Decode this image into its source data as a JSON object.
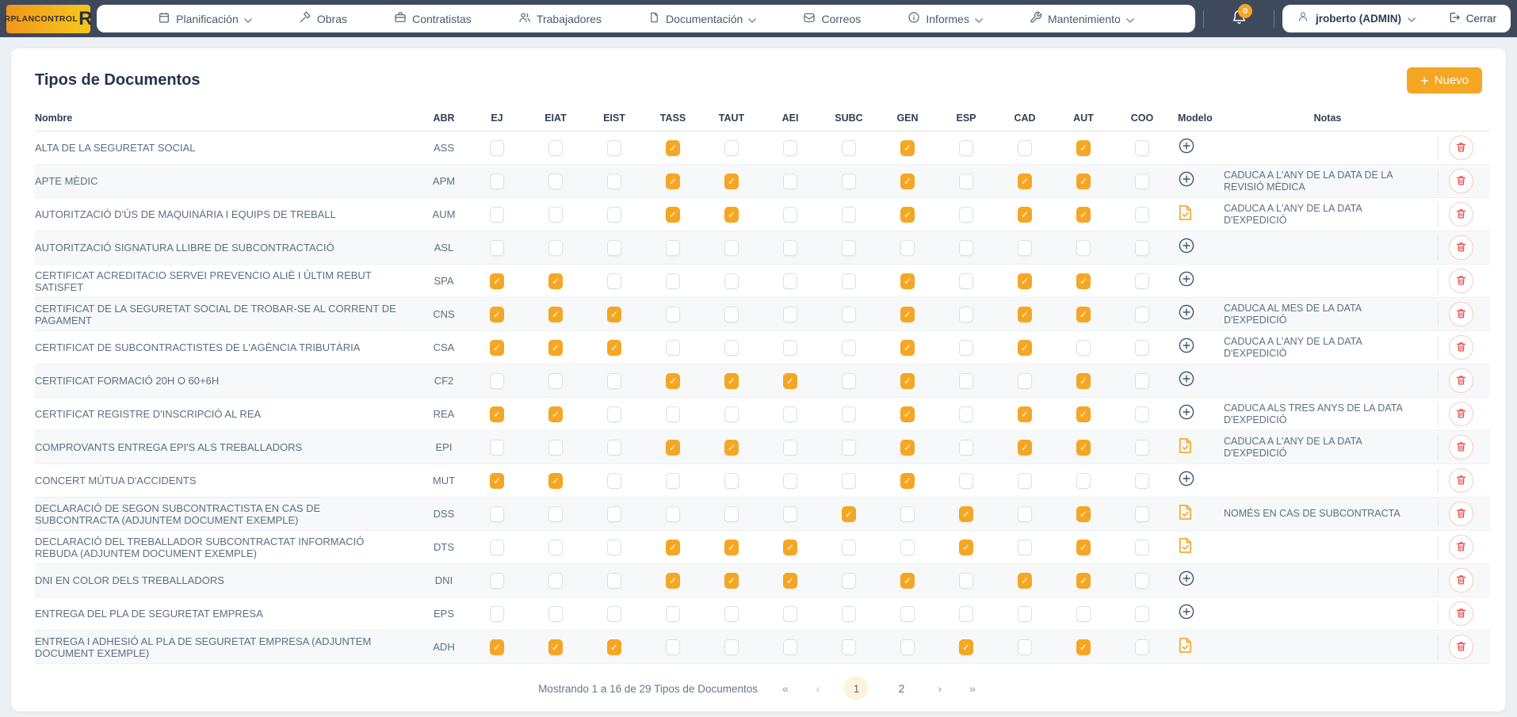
{
  "brand": {
    "logo_text": "RPLANCONTROL",
    "logo_mark": "R"
  },
  "nav": {
    "items": [
      {
        "label": "Planificación",
        "icon": "calendar-icon",
        "has_dropdown": true
      },
      {
        "label": "Obras",
        "icon": "gavel-icon",
        "has_dropdown": false
      },
      {
        "label": "Contratistas",
        "icon": "briefcase-icon",
        "has_dropdown": false
      },
      {
        "label": "Trabajadores",
        "icon": "people-icon",
        "has_dropdown": false
      },
      {
        "label": "Documentación",
        "icon": "document-icon",
        "has_dropdown": true
      },
      {
        "label": "Correos",
        "icon": "mail-icon",
        "has_dropdown": false
      },
      {
        "label": "Informes",
        "icon": "info-icon",
        "has_dropdown": true
      },
      {
        "label": "Mantenimiento",
        "icon": "wrench-icon",
        "has_dropdown": true
      }
    ]
  },
  "topbar": {
    "notifications_count": "0",
    "user_label": "jroberto (ADMIN)",
    "logout_label": "Cerrar"
  },
  "page": {
    "title": "Tipos de Documentos",
    "new_button_label": "Nuevo"
  },
  "table": {
    "columns": [
      "Nombre",
      "ABR",
      "EJ",
      "EIAT",
      "EIST",
      "TASS",
      "TAUT",
      "AEI",
      "SUBC",
      "GEN",
      "ESP",
      "CAD",
      "AUT",
      "COO",
      "Modelo",
      "Notas"
    ],
    "checkbox_columns": [
      "EJ",
      "EIAT",
      "EIST",
      "TASS",
      "TAUT",
      "AEI",
      "SUBC",
      "GEN",
      "ESP",
      "CAD",
      "AUT",
      "COO"
    ],
    "rows": [
      {
        "nombre": "ALTA DE LA SEGURETAT SOCIAL",
        "abr": "ASS",
        "checks": [
          0,
          0,
          0,
          1,
          0,
          0,
          0,
          1,
          0,
          0,
          1,
          0
        ],
        "modelo": "add",
        "notas": ""
      },
      {
        "nombre": "APTE MÈDIC",
        "abr": "APM",
        "checks": [
          0,
          0,
          0,
          1,
          1,
          0,
          0,
          1,
          0,
          1,
          1,
          0
        ],
        "modelo": "add",
        "notas": "CADUCA A L'ANY DE LA DATA DE LA REVISIÓ MÈDICA"
      },
      {
        "nombre": "AUTORITZACIÓ D'ÚS DE MAQUINÀRIA I EQUIPS DE TREBALL",
        "abr": "AUM",
        "checks": [
          0,
          0,
          0,
          1,
          1,
          0,
          0,
          1,
          0,
          1,
          1,
          0
        ],
        "modelo": "doc",
        "notas": "CADUCA A L'ANY DE LA DATA D'EXPEDICIÓ"
      },
      {
        "nombre": "AUTORITZACIÓ SIGNATURA LLIBRE DE SUBCONTRACTACIÓ",
        "abr": "ASL",
        "checks": [
          0,
          0,
          0,
          0,
          0,
          0,
          0,
          0,
          0,
          0,
          0,
          0
        ],
        "modelo": "add",
        "notas": ""
      },
      {
        "nombre": "CERTIFICAT ACREDITACIO SERVEI PREVENCIO ALIÈ I ÚLTIM REBUT SATISFET",
        "abr": "SPA",
        "checks": [
          1,
          1,
          0,
          0,
          0,
          0,
          0,
          1,
          0,
          1,
          1,
          0
        ],
        "modelo": "add",
        "notas": ""
      },
      {
        "nombre": "CERTIFICAT DE LA SEGURETAT SOCIAL DE TROBAR-SE AL CORRENT DE PAGAMENT",
        "abr": "CNS",
        "checks": [
          1,
          1,
          1,
          0,
          0,
          0,
          0,
          1,
          0,
          1,
          1,
          0
        ],
        "modelo": "add",
        "notas": "CADUCA AL MES DE LA DATA D'EXPEDICIÓ"
      },
      {
        "nombre": "CERTIFICAT DE SUBCONTRACTISTES DE L'AGÈNCIA TRIBUTÀRIA",
        "abr": "CSA",
        "checks": [
          1,
          1,
          1,
          0,
          0,
          0,
          0,
          1,
          0,
          1,
          0,
          0
        ],
        "modelo": "add",
        "notas": "CADUCA A L'ANY DE LA DATA D'EXPEDICIÓ"
      },
      {
        "nombre": "CERTIFICAT FORMACIÓ 20H O 60+6H",
        "abr": "CF2",
        "checks": [
          0,
          0,
          0,
          1,
          1,
          1,
          0,
          1,
          0,
          0,
          1,
          0
        ],
        "modelo": "add",
        "notas": ""
      },
      {
        "nombre": "CERTIFICAT REGISTRE D'INSCRIPCIÓ AL REA",
        "abr": "REA",
        "checks": [
          1,
          1,
          0,
          0,
          0,
          0,
          0,
          1,
          0,
          1,
          1,
          0
        ],
        "modelo": "add",
        "notas": "CADUCA ALS TRES ANYS DE LA DATA D'EXPEDICIÓ"
      },
      {
        "nombre": "COMPROVANTS ENTREGA EPI'S ALS TREBALLADORS",
        "abr": "EPI",
        "checks": [
          0,
          0,
          0,
          1,
          1,
          0,
          0,
          1,
          0,
          1,
          1,
          0
        ],
        "modelo": "doc",
        "notas": "CADUCA A L'ANY DE LA DATA D'EXPEDICIÓ"
      },
      {
        "nombre": "CONCERT MÚTUA D'ACCIDENTS",
        "abr": "MUT",
        "checks": [
          1,
          1,
          0,
          0,
          0,
          0,
          0,
          1,
          0,
          0,
          0,
          0
        ],
        "modelo": "add",
        "notas": ""
      },
      {
        "nombre": "DECLARACIÓ DE SEGON SUBCONTRACTISTA EN CAS DE SUBCONTRACTA (ADJUNTEM DOCUMENT EXEMPLE)",
        "abr": "DSS",
        "checks": [
          0,
          0,
          0,
          0,
          0,
          0,
          1,
          0,
          1,
          0,
          1,
          0
        ],
        "modelo": "doc",
        "notas": "NOMÉS EN CAS DE SUBCONTRACTA"
      },
      {
        "nombre": "DECLARACIÓ DEL TREBALLADOR SUBCONTRACTAT INFORMACIÓ REBUDA (ADJUNTEM DOCUMENT EXEMPLE)",
        "abr": "DTS",
        "checks": [
          0,
          0,
          0,
          1,
          1,
          1,
          0,
          0,
          1,
          0,
          1,
          0
        ],
        "modelo": "doc",
        "notas": ""
      },
      {
        "nombre": "DNI EN COLOR DELS TREBALLADORS",
        "abr": "DNI",
        "checks": [
          0,
          0,
          0,
          1,
          1,
          1,
          0,
          1,
          0,
          1,
          1,
          0
        ],
        "modelo": "add",
        "notas": ""
      },
      {
        "nombre": "ENTREGA DEL PLA DE SEGURETAT EMPRESA",
        "abr": "EPS",
        "checks": [
          0,
          0,
          0,
          0,
          0,
          0,
          0,
          0,
          0,
          0,
          0,
          0
        ],
        "modelo": "add",
        "notas": ""
      },
      {
        "nombre": "ENTREGA I ADHESIÓ AL PLA DE SEGURETAT EMPRESA (ADJUNTEM DOCUMENT EXEMPLE)",
        "abr": "ADH",
        "checks": [
          1,
          1,
          1,
          0,
          0,
          0,
          0,
          0,
          1,
          0,
          1,
          0
        ],
        "modelo": "doc",
        "notas": ""
      }
    ]
  },
  "pagination": {
    "summary": "Mostrando 1 a 16 de 29 Tipos de Documentos",
    "first": "«",
    "prev": "‹",
    "next": "›",
    "last": "»",
    "pages": [
      "1",
      "2"
    ],
    "active_page": "1"
  },
  "colors": {
    "accent_orange": "#f5a623",
    "topbar": "#3e4a5c",
    "danger_red": "#e8524a",
    "page_bg": "#eceff3"
  }
}
